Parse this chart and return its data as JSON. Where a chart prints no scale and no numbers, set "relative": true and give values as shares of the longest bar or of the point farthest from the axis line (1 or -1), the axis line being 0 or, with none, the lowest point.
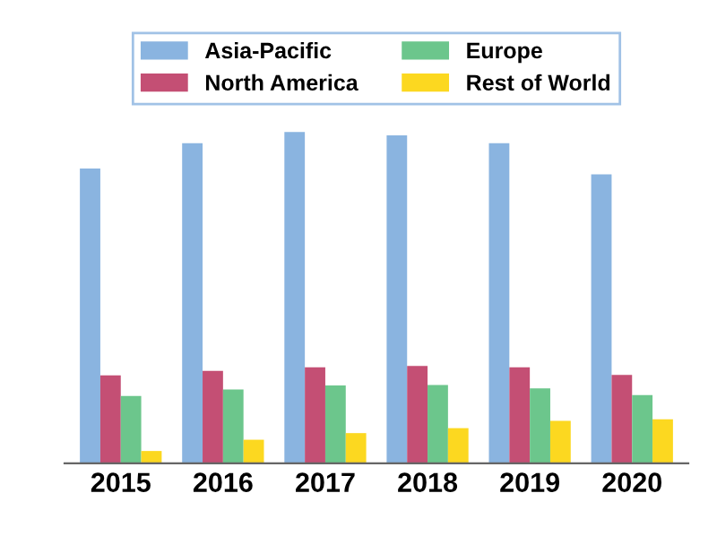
{
  "chart_data": {
    "type": "bar",
    "relative": true,
    "categories": [
      "2015",
      "2016",
      "2017",
      "2018",
      "2019",
      "2020"
    ],
    "series": [
      {
        "name": "Asia-Pacific",
        "color": "#8ab4e0",
        "values": [
          0.89,
          0.966,
          1,
          0.99,
          0.966,
          0.872
        ]
      },
      {
        "name": "North America",
        "color": "#c44f74",
        "values": [
          0.265,
          0.279,
          0.29,
          0.294,
          0.29,
          0.267
        ]
      },
      {
        "name": "Europe",
        "color": "#6cc68c",
        "values": [
          0.203,
          0.223,
          0.235,
          0.236,
          0.226,
          0.206
        ]
      },
      {
        "name": "Rest of World",
        "color": "#fcd820",
        "values": [
          0.037,
          0.071,
          0.091,
          0.106,
          0.128,
          0.133
        ]
      }
    ],
    "legend": "top",
    "grid": false
  }
}
